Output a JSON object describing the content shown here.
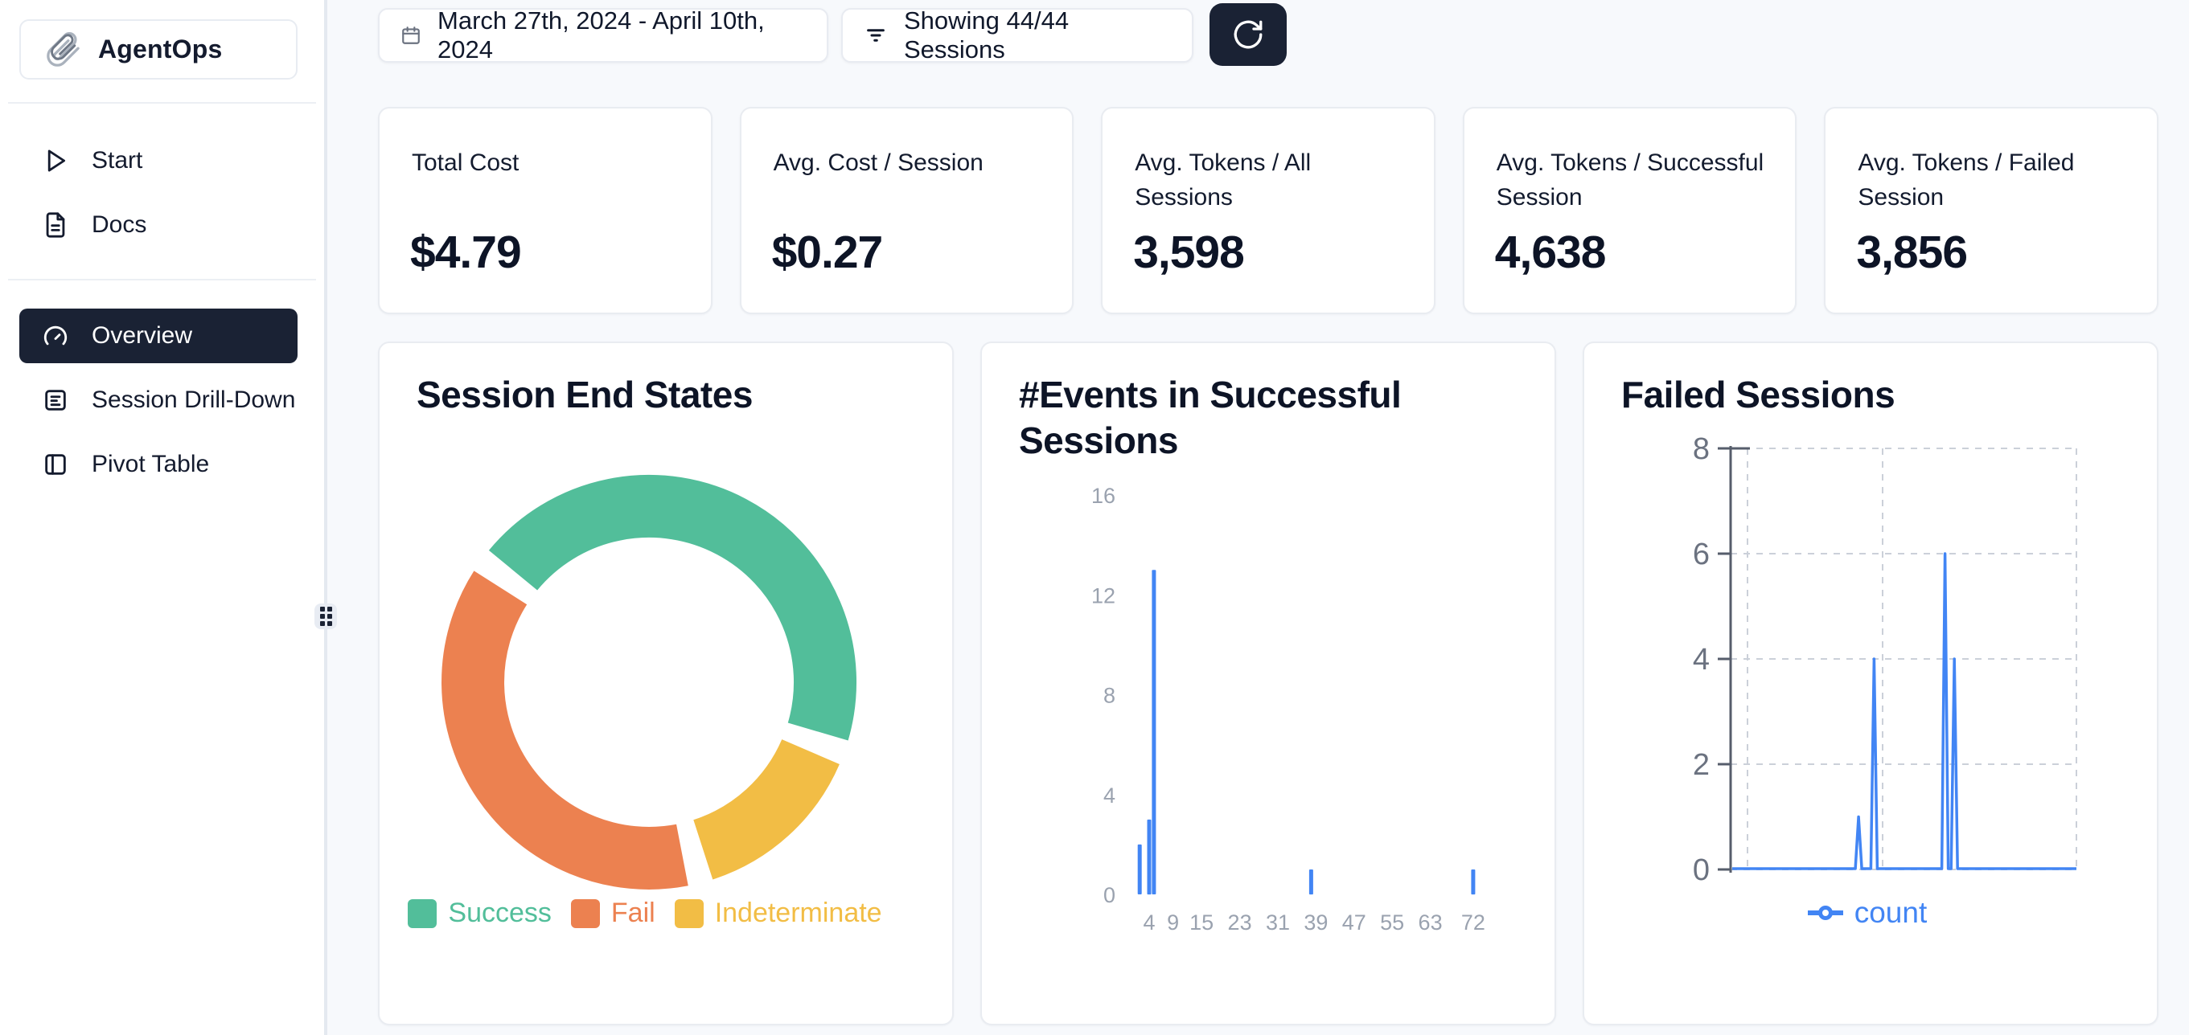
{
  "app": {
    "name": "AgentOps",
    "logo_icon": "paperclip-icon"
  },
  "sidebar": {
    "primary": [
      {
        "label": "Start",
        "icon": "play-icon"
      },
      {
        "label": "Docs",
        "icon": "docs-icon"
      }
    ],
    "secondary": [
      {
        "label": "Overview",
        "icon": "gauge-icon",
        "selected": true
      },
      {
        "label": "Session Drill-Down",
        "icon": "session-list-icon",
        "selected": false
      },
      {
        "label": "Pivot Table",
        "icon": "pivot-table-icon",
        "selected": false
      }
    ]
  },
  "topbar": {
    "date_range": "March 27th, 2024 - April 10th, 2024",
    "date_icon": "calendar-icon",
    "sessions_filter": "Showing 44/44 Sessions",
    "filter_icon": "filter-icon",
    "refresh_icon": "refresh-icon"
  },
  "stats": [
    {
      "label": "Total Cost",
      "value": "$4.79"
    },
    {
      "label": "Avg. Cost / Session",
      "value": "$0.27"
    },
    {
      "label": "Avg. Tokens / All Sessions",
      "value": "3,598"
    },
    {
      "label": "Avg. Tokens / Successful Session",
      "value": "4,638"
    },
    {
      "label": "Avg. Tokens / Failed Session",
      "value": "3,856"
    }
  ],
  "colors": {
    "accent_dark": "#1a2234",
    "chart_blue": "#4285f4",
    "success_green": "#52be9a",
    "fail_orange": "#ec8150",
    "indeterminate_yellow": "#f2bd45",
    "page_bg": "#f7f9fc",
    "grid_dash": "#cbd0d9"
  },
  "chart_data": [
    {
      "type": "pie",
      "title": "Session End States",
      "donut": true,
      "start_angle": 306,
      "pad_angle": 7,
      "slices": [
        {
          "label": "Success",
          "pct": 45.5,
          "color": "#52be9a"
        },
        {
          "label": "Indeterminate",
          "pct": 15.5,
          "color": "#f2bd45"
        },
        {
          "label": "Fail",
          "pct": 39.0,
          "color": "#ec8150"
        }
      ],
      "legend": [
        {
          "label": "Success",
          "color": "#52be9a"
        },
        {
          "label": "Fail",
          "color": "#ec8150"
        },
        {
          "label": "Indeterminate",
          "color": "#f2bd45"
        }
      ],
      "legend_position": "bottom"
    },
    {
      "type": "bar",
      "title": "#Events in Successful Sessions",
      "points": [
        {
          "x": 2,
          "y": 2
        },
        {
          "x": 4,
          "y": 3
        },
        {
          "x": 5,
          "y": 13
        },
        {
          "x": 38,
          "y": 1
        },
        {
          "x": 72,
          "y": 1
        }
      ],
      "x_ticks": [
        4,
        9,
        15,
        23,
        31,
        39,
        47,
        55,
        63,
        72
      ],
      "y_ticks": [
        16,
        12,
        8,
        4,
        0
      ],
      "ylim": [
        0,
        16
      ],
      "grid": false,
      "bar_color": "#4285f4"
    },
    {
      "type": "line",
      "title": "Failed Sessions",
      "series": [
        {
          "name": "count",
          "color": "#4285f4",
          "baseline": 0,
          "spikes": [
            {
              "x_frac": 0.37,
              "value": 1
            },
            {
              "x_frac": 0.415,
              "value": 4
            },
            {
              "x_frac": 0.62,
              "value": 6
            },
            {
              "x_frac": 0.647,
              "value": 4
            }
          ]
        }
      ],
      "y_ticks": [
        8,
        6,
        4,
        2,
        0
      ],
      "ylim": [
        0,
        8
      ],
      "x_ticks": [],
      "grid": "dashed",
      "legend": [
        "count"
      ],
      "legend_position": "bottom"
    }
  ]
}
